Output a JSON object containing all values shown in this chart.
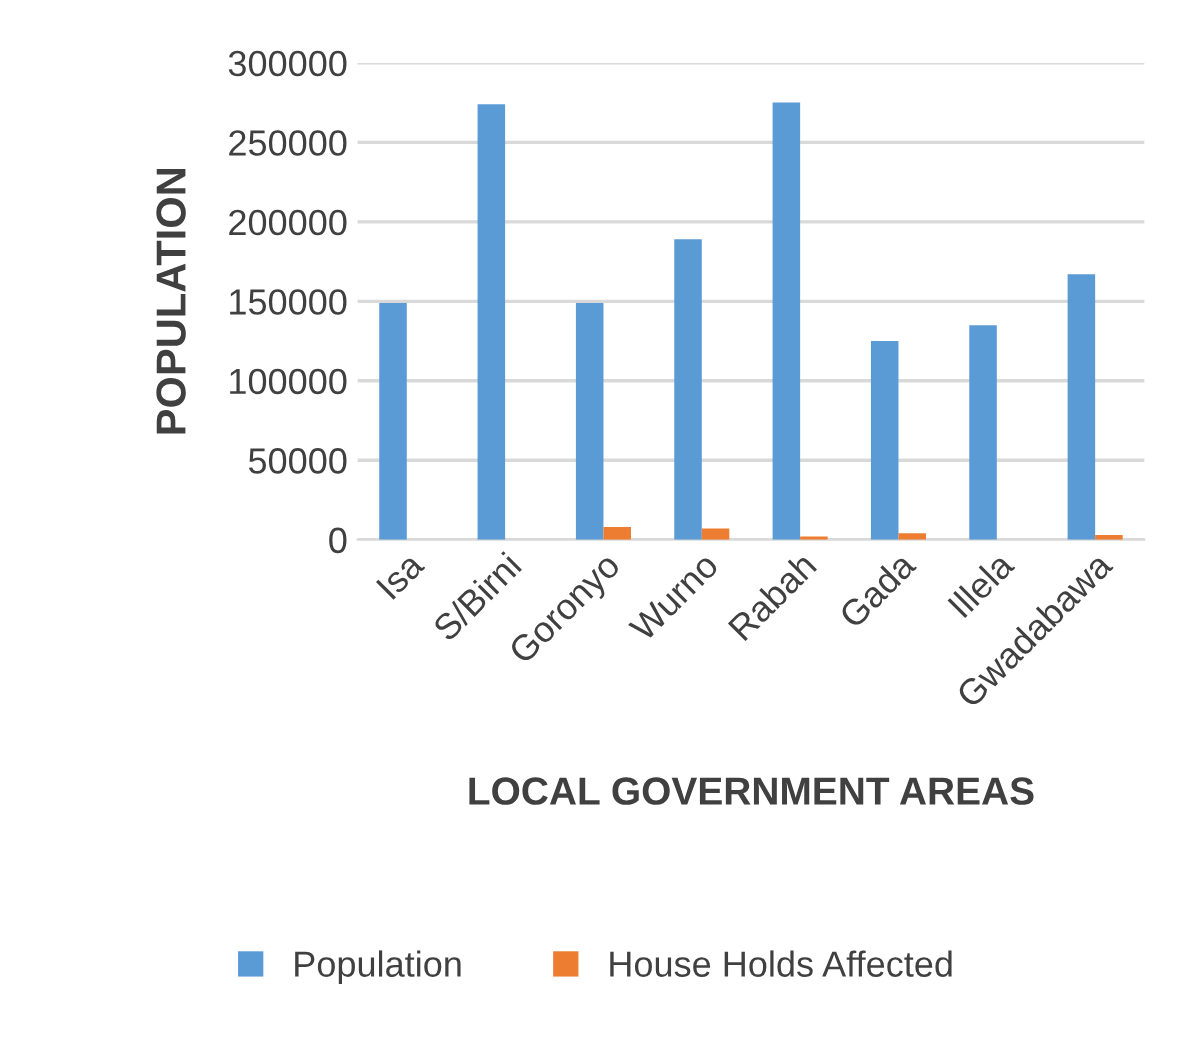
{
  "chart_data": {
    "type": "bar",
    "xlabel": "LOCAL GOVERNMENT AREAS",
    "ylabel": "POPULATION",
    "categories": [
      "Isa",
      "S/Birni",
      "Goronyo",
      "Wurno",
      "Rabah",
      "Gada",
      "Illela",
      "Gwadabawa"
    ],
    "series": [
      {
        "name": "Population",
        "color": "#5b9bd5",
        "values": [
          149000,
          274000,
          149000,
          189000,
          275000,
          125000,
          135000,
          167000
        ]
      },
      {
        "name": "House Holds Affected",
        "color": "#ed7d31",
        "values": [
          0,
          0,
          8000,
          7000,
          2000,
          4000,
          0,
          3000
        ]
      }
    ],
    "ylim": [
      0,
      300000
    ],
    "yticks": [
      0,
      50000,
      100000,
      150000,
      200000,
      250000,
      300000
    ],
    "grid": "y",
    "legend": "bottom"
  }
}
